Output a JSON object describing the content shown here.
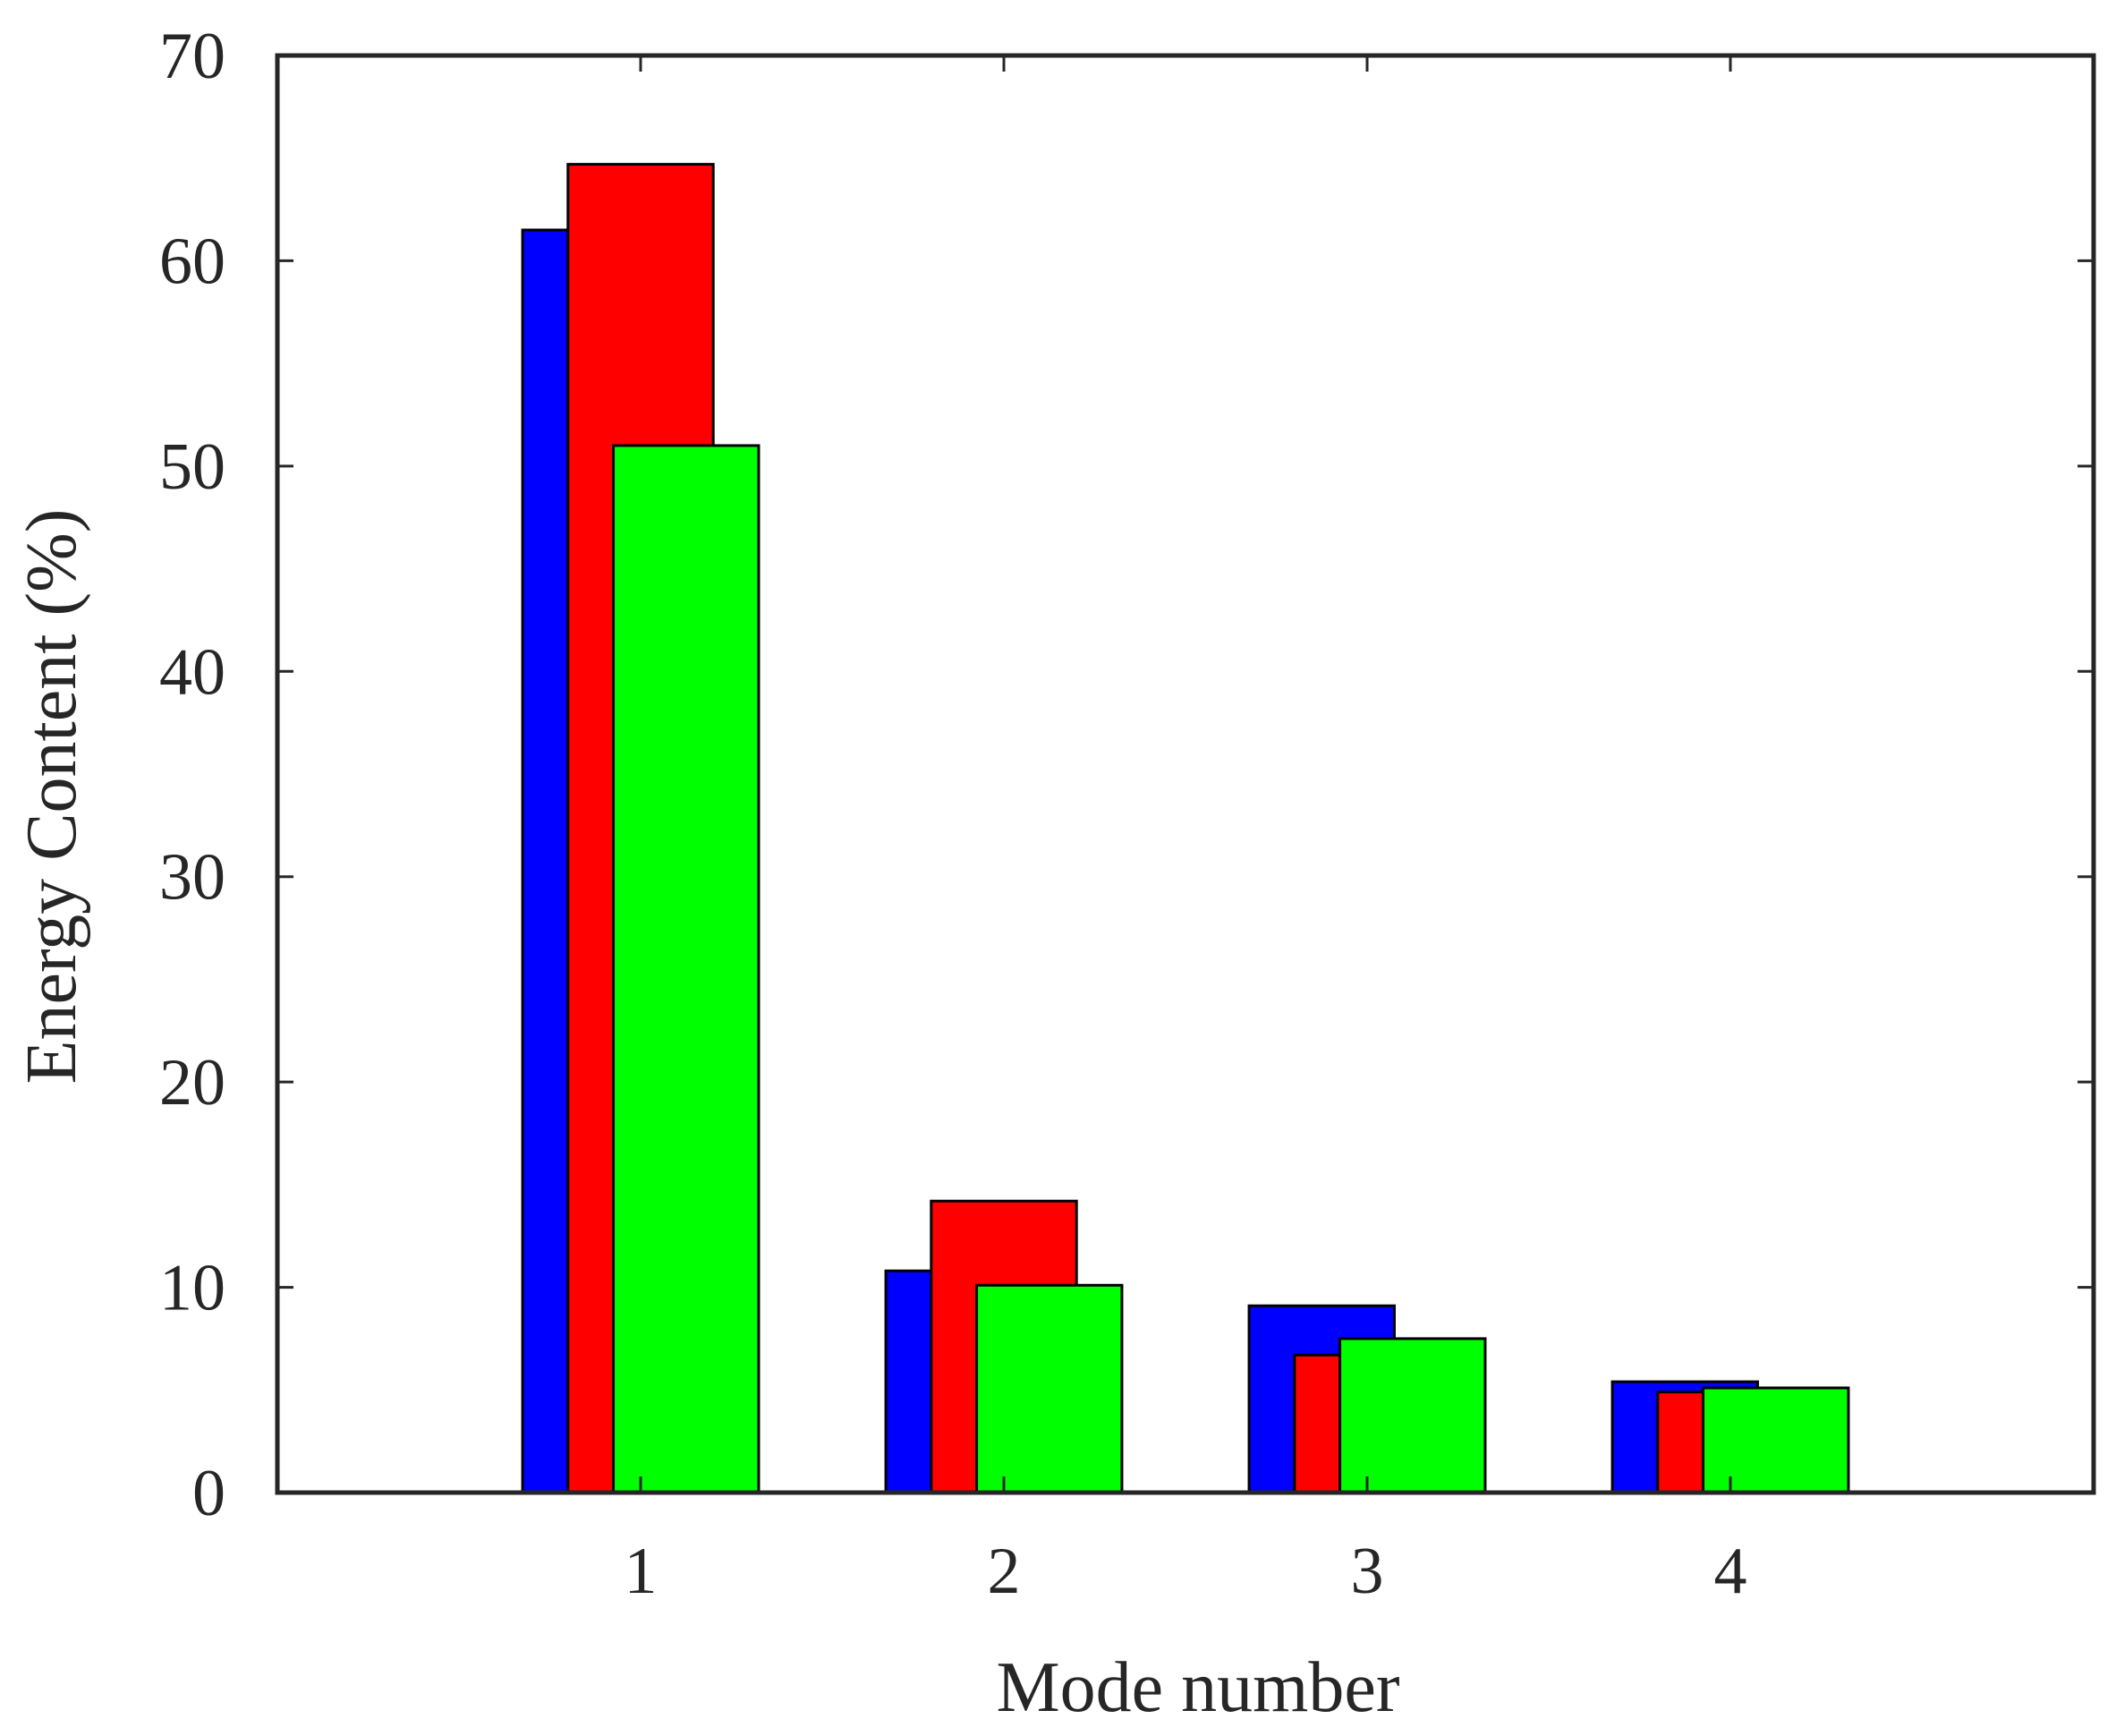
{
  "chart_data": {
    "type": "bar",
    "xlabel": "Mode number",
    "ylabel": "Energy Content (%)",
    "categories": [
      "1",
      "2",
      "3",
      "4"
    ],
    "xlim": [
      0,
      5
    ],
    "ylim": [
      0,
      70
    ],
    "yticks": [
      0,
      10,
      20,
      30,
      40,
      50,
      60,
      70
    ],
    "grid": false,
    "legend": false,
    "series": [
      {
        "color": "#0000ff",
        "values": [
          61.5,
          10.8,
          9.1,
          5.4
        ]
      },
      {
        "color": "#ff0000",
        "values": [
          64.7,
          14.2,
          6.7,
          4.9
        ]
      },
      {
        "color": "#00ff00",
        "values": [
          51.0,
          10.1,
          7.5,
          5.1
        ]
      }
    ]
  }
}
